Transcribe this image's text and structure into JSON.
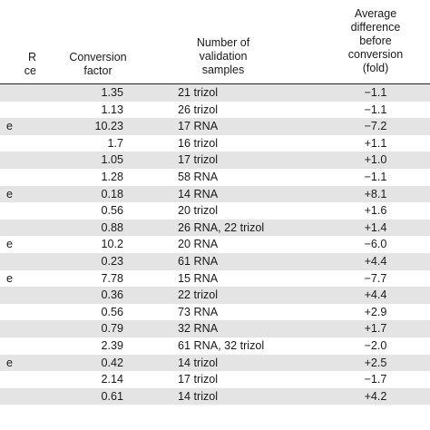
{
  "headers": {
    "col0_partial": [
      "R",
      "ce"
    ],
    "conversion_factor": [
      "Conversion",
      "factor"
    ],
    "validation_samples": [
      "Number of",
      "validation",
      "samples"
    ],
    "average_difference": [
      "Average",
      "difference",
      "before",
      "conversion",
      "(fold)"
    ]
  },
  "rows": [
    {
      "edge": "",
      "factor": "1.35",
      "samples": "21 trizol",
      "difference": "−1.1",
      "shaded": true
    },
    {
      "edge": "",
      "factor": "1.13",
      "samples": "26 trizol",
      "difference": "−1.1",
      "shaded": false
    },
    {
      "edge": "e",
      "factor": "10.23",
      "samples": "17 RNA",
      "difference": "−7.2",
      "shaded": true
    },
    {
      "edge": "",
      "factor": "1.7",
      "samples": "16 trizol",
      "difference": "+1.1",
      "shaded": false
    },
    {
      "edge": "",
      "factor": "1.05",
      "samples": "17 trizol",
      "difference": "+1.0",
      "shaded": true
    },
    {
      "edge": "",
      "factor": "1.28",
      "samples": "58 RNA",
      "difference": "−1.1",
      "shaded": false
    },
    {
      "edge": "e",
      "factor": "0.18",
      "samples": "14 RNA",
      "difference": "+8.1",
      "shaded": true
    },
    {
      "edge": "",
      "factor": "0.56",
      "samples": "20 trizol",
      "difference": "+1.6",
      "shaded": false
    },
    {
      "edge": "",
      "factor": "0.88",
      "samples": "26 RNA, 22 trizol",
      "difference": "+1.4",
      "shaded": true
    },
    {
      "edge": "e",
      "factor": "10.2",
      "samples": "20 RNA",
      "difference": "−6.0",
      "shaded": false
    },
    {
      "edge": "",
      "factor": "0.23",
      "samples": "61 RNA",
      "difference": "+4.4",
      "shaded": true
    },
    {
      "edge": "e",
      "factor": "7.78",
      "samples": "15 RNA",
      "difference": "−7.7",
      "shaded": false
    },
    {
      "edge": "",
      "factor": "0.36",
      "samples": "22 trizol",
      "difference": "+4.4",
      "shaded": true
    },
    {
      "edge": "",
      "factor": "0.56",
      "samples": "73 RNA",
      "difference": "+2.9",
      "shaded": false
    },
    {
      "edge": "",
      "factor": "0.79",
      "samples": "32 RNA",
      "difference": "+1.7",
      "shaded": true
    },
    {
      "edge": "",
      "factor": "2.39",
      "samples": "61 RNA, 32 trizol",
      "difference": "−2.0",
      "shaded": false
    },
    {
      "edge": "e",
      "factor": "0.42",
      "samples": "14 trizol",
      "difference": "+2.5",
      "shaded": true
    },
    {
      "edge": "",
      "factor": "2.14",
      "samples": "17 trizol",
      "difference": "−1.7",
      "shaded": false
    },
    {
      "edge": "",
      "factor": "0.61",
      "samples": "14 trizol",
      "difference": "+4.2",
      "shaded": true
    }
  ]
}
